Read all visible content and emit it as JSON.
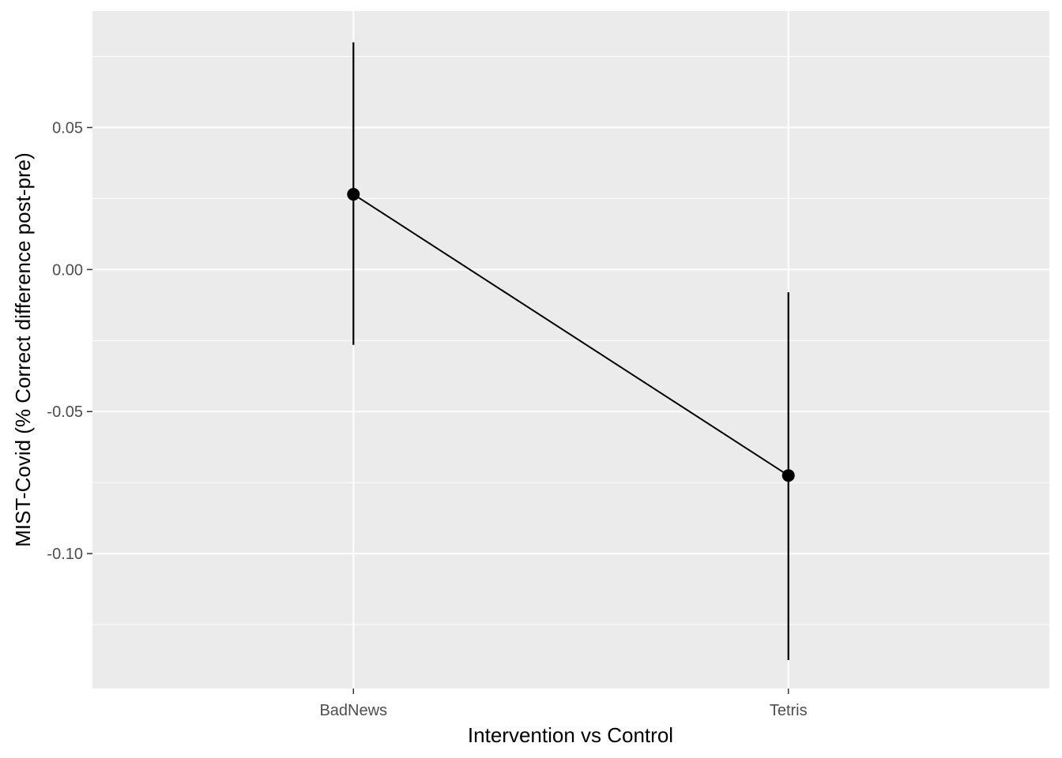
{
  "chart_data": {
    "type": "line",
    "xlabel": "Intervention vs Control",
    "ylabel": "MIST-Covid (% Correct difference post-pre)",
    "categories": [
      "BadNews",
      "Tetris"
    ],
    "series": [
      {
        "values": [
          0.0265,
          -0.0725
        ],
        "error_lower": [
          -0.0265,
          -0.1375
        ],
        "error_upper": [
          0.08,
          -0.008
        ]
      }
    ],
    "ylim": [
      -0.1475,
      0.091
    ],
    "yticks": [
      0.05,
      0.0,
      -0.05,
      -0.1
    ],
    "ytick_labels": [
      "0.05",
      "0.00",
      "-0.05",
      "-0.10"
    ],
    "y_minor_ticks": [
      0.075,
      0.025,
      -0.025,
      -0.075,
      -0.125
    ],
    "grid": true,
    "legend": "none",
    "colors": {
      "panel_background": "#ebebeb",
      "grid": "#ffffff",
      "mark": "#000000",
      "tick_label": "#4d4d4d",
      "tick_mark": "#333333"
    }
  }
}
